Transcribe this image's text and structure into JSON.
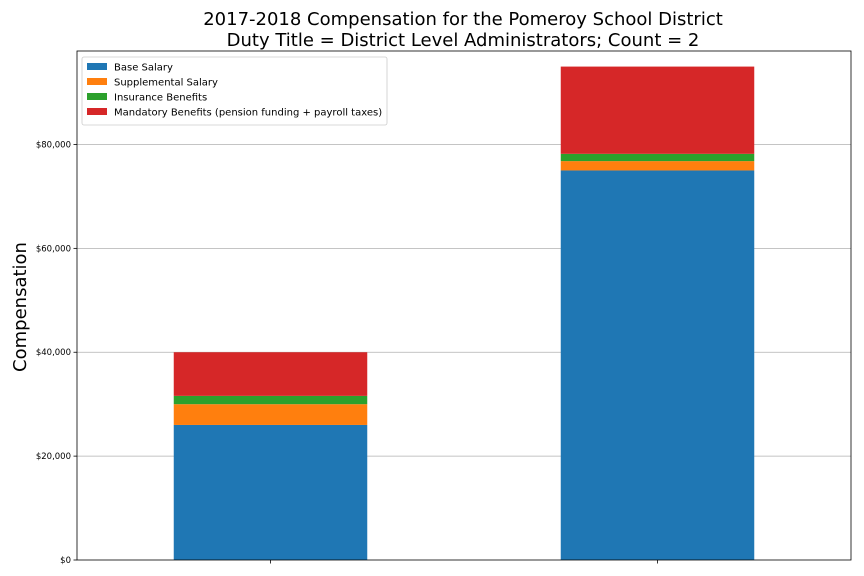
{
  "chart_data": {
    "type": "bar",
    "stacked": true,
    "title_line1": "2017-2018 Compensation for the Pomeroy School District",
    "title_line2": "Duty Title = District Level Administrators; Count = 2",
    "xlabel": "",
    "ylabel": "Compensation",
    "categories": [
      "",
      ""
    ],
    "ylim": [
      0,
      98000
    ],
    "yticks": [
      0,
      20000,
      40000,
      60000,
      80000
    ],
    "ytick_labels": [
      "$0",
      "$20,000",
      "$40,000",
      "$60,000",
      "$80,000"
    ],
    "grid": "horizontal",
    "legend_position": "top-left",
    "series": [
      {
        "name": "Base Salary",
        "color": "#1f77b4",
        "values": [
          26000,
          75000
        ]
      },
      {
        "name": "Supplemental Salary",
        "color": "#ff7f0e",
        "values": [
          4000,
          1800
        ]
      },
      {
        "name": "Insurance Benefits",
        "color": "#2ca02c",
        "values": [
          1600,
          1400
        ]
      },
      {
        "name": "Mandatory Benefits (pension funding + payroll taxes)",
        "color": "#d62728",
        "values": [
          8400,
          16800
        ]
      }
    ]
  }
}
